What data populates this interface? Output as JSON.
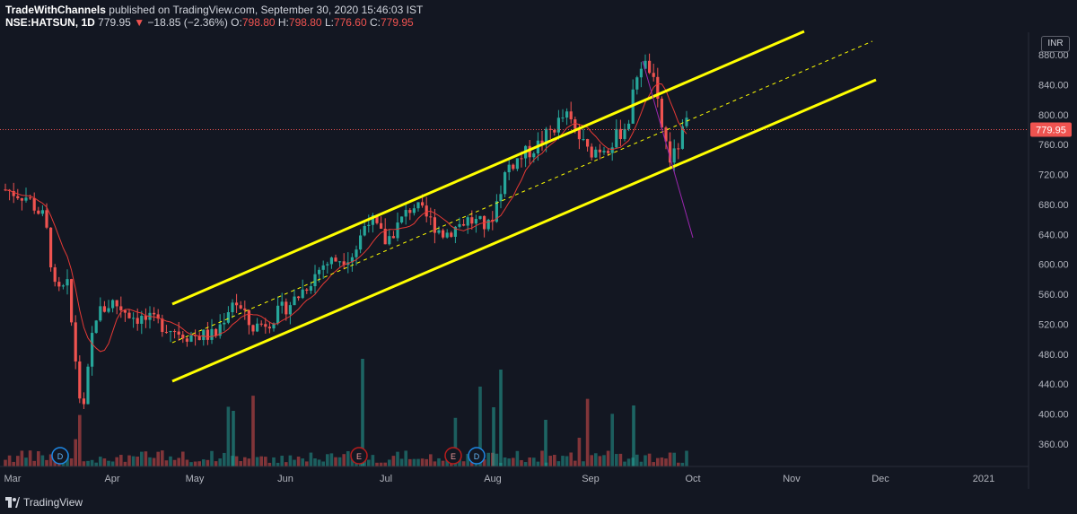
{
  "header": {
    "author": "TradeWithChannels",
    "published_text": "published on TradingView.com, September 30, 2020 15:46:03 IST",
    "symbol": "NSE:HATSUN, 1D",
    "last": "779.95",
    "change_arrow": "▼",
    "change": "−18.85 (−2.36%)",
    "o_label": "O:",
    "o_val": "798.80",
    "h_label": "H:",
    "h_val": "798.80",
    "l_label": "L:",
    "l_val": "776.60",
    "c_label": "C:",
    "c_val": "779.95"
  },
  "currency_button": "INR",
  "brand": "TradingView",
  "colors": {
    "background": "#131722",
    "up": "#26a69a",
    "down": "#ef5350",
    "channel": "#ffff00",
    "ma": "#e53935",
    "trend_break": "#9c27b0",
    "axis_text": "#b2b5be"
  },
  "chart_data": {
    "type": "candlestick",
    "ylim": [
      330,
      910
    ],
    "y_ticks": [
      360,
      400,
      440,
      480,
      520,
      560,
      600,
      640,
      680,
      720,
      760,
      800,
      840,
      880
    ],
    "x_ticks": [
      "Mar",
      "Apr",
      "May",
      "Jun",
      "Jul",
      "Aug",
      "Sep",
      "Oct",
      "Nov",
      "Dec",
      "2021"
    ],
    "last_price_label": "779.95",
    "volume_markers": [
      "D",
      "E",
      "E",
      "D"
    ],
    "grid": false,
    "series": [
      {
        "name": "Price",
        "style": "candles"
      },
      {
        "name": "MA",
        "style": "line",
        "color": "#e53935"
      }
    ]
  }
}
